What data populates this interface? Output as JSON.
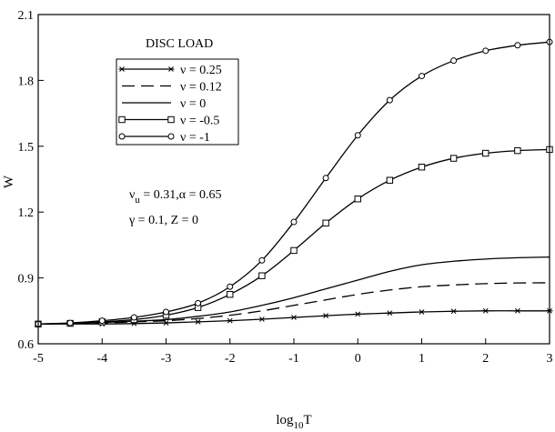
{
  "chart_data": {
    "type": "line",
    "title": "DISC LOAD",
    "xlabel": "log",
    "xlabel_sub": "10",
    "xlabel_suffix": "T",
    "ylabel": "W",
    "xlim": [
      -5,
      3
    ],
    "ylim": [
      0.6,
      2.1
    ],
    "xticks": [
      -5,
      -4,
      -3,
      -2,
      -1,
      0,
      1,
      2,
      3
    ],
    "xtick_labels": [
      "-5",
      "-4",
      "-3",
      "-2",
      "-1",
      "0",
      "1",
      "2",
      "3"
    ],
    "yticks": [
      0.6,
      0.9,
      1.2,
      1.5,
      1.8,
      2.1
    ],
    "ytick_labels": [
      "0.6",
      "0.9",
      "1.2",
      "1.5",
      "1.8",
      "2.1"
    ],
    "grid": false,
    "legend_position": "top-left",
    "annotations": {
      "line1_nu": "ν",
      "line1_sub": "u",
      "line1_rest": " = 0.31,α = 0.65",
      "line2": "γ = 0.1, Z = 0"
    },
    "series": [
      {
        "name": "ν = 0.25",
        "marker": "asterisk",
        "dash": "solid",
        "x": [
          -5,
          -4.5,
          -4,
          -3.5,
          -3,
          -2.5,
          -2,
          -1.5,
          -1,
          -0.5,
          0,
          0.5,
          1,
          1.5,
          2,
          2.5,
          3
        ],
        "y": [
          0.69,
          0.69,
          0.69,
          0.692,
          0.695,
          0.7,
          0.705,
          0.712,
          0.72,
          0.728,
          0.735,
          0.74,
          0.745,
          0.748,
          0.75,
          0.75,
          0.75
        ]
      },
      {
        "name": "ν = 0.12",
        "marker": "none",
        "dash": "dashed",
        "x": [
          -5,
          -4.5,
          -4,
          -3.5,
          -3,
          -2.5,
          -2,
          -1.5,
          -1,
          -0.5,
          0,
          0.5,
          1,
          1.5,
          2,
          2.5,
          3
        ],
        "y": [
          0.69,
          0.692,
          0.695,
          0.7,
          0.705,
          0.715,
          0.73,
          0.75,
          0.775,
          0.8,
          0.825,
          0.845,
          0.86,
          0.868,
          0.874,
          0.877,
          0.878
        ]
      },
      {
        "name": "ν = 0",
        "marker": "none",
        "dash": "solid",
        "x": [
          -5,
          -4.5,
          -4,
          -3.5,
          -3,
          -2.5,
          -2,
          -1.5,
          -1,
          -0.5,
          0,
          0.5,
          1,
          1.5,
          2,
          2.5,
          3
        ],
        "y": [
          0.69,
          0.693,
          0.697,
          0.703,
          0.71,
          0.725,
          0.745,
          0.775,
          0.81,
          0.85,
          0.89,
          0.93,
          0.96,
          0.976,
          0.986,
          0.992,
          0.995
        ]
      },
      {
        "name": "ν = -0.5",
        "marker": "square",
        "dash": "solid",
        "x": [
          -5,
          -4.5,
          -4,
          -3.5,
          -3,
          -2.5,
          -2,
          -1.5,
          -1,
          -0.5,
          0,
          0.5,
          1,
          1.5,
          2,
          2.5,
          3
        ],
        "y": [
          0.69,
          0.693,
          0.7,
          0.71,
          0.73,
          0.765,
          0.825,
          0.91,
          1.025,
          1.15,
          1.26,
          1.345,
          1.405,
          1.445,
          1.468,
          1.48,
          1.485
        ]
      },
      {
        "name": "ν = -1",
        "marker": "circle",
        "dash": "solid",
        "x": [
          -5,
          -4.5,
          -4,
          -3.5,
          -3,
          -2.5,
          -2,
          -1.5,
          -1,
          -0.5,
          0,
          0.5,
          1,
          1.5,
          2,
          2.5,
          3
        ],
        "y": [
          0.69,
          0.695,
          0.705,
          0.72,
          0.745,
          0.785,
          0.86,
          0.98,
          1.155,
          1.355,
          1.55,
          1.71,
          1.82,
          1.89,
          1.935,
          1.96,
          1.975
        ]
      }
    ]
  }
}
